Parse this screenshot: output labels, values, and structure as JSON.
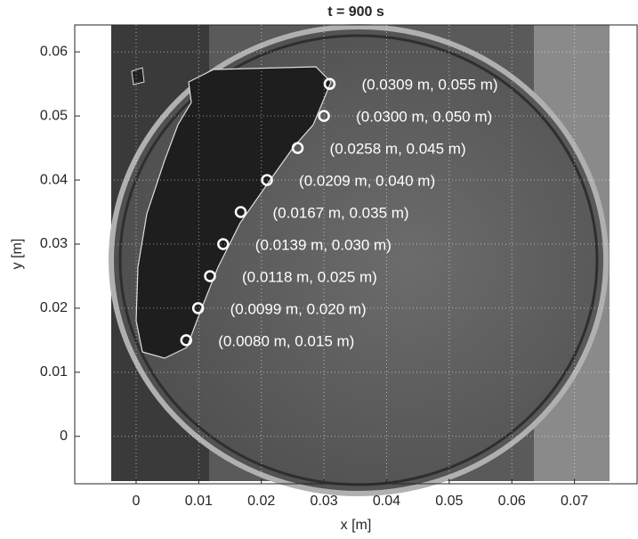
{
  "chart_data": {
    "type": "scatter",
    "title": "t = 900 s",
    "x_label": "x [m]",
    "y_label": "y [m]",
    "x": [
      0.0309,
      0.03,
      0.0258,
      0.0209,
      0.0167,
      0.0139,
      0.0118,
      0.0099,
      0.008
    ],
    "values": [
      0.055,
      0.05,
      0.045,
      0.04,
      0.035,
      0.03,
      0.025,
      0.02,
      0.015
    ],
    "value_labels": [
      "(0.0309 m, 0.055 m)",
      "(0.0300 m, 0.050 m)",
      "(0.0258 m, 0.045 m)",
      "(0.0209 m, 0.040 m)",
      "(0.0167 m, 0.035 m)",
      "(0.0139 m, 0.030 m)",
      "(0.0118 m, 0.025 m)",
      "(0.0099 m, 0.020 m)",
      "(0.0080 m, 0.015 m)"
    ],
    "color": "#ffffff",
    "xlim": [
      -0.0098,
      0.08
    ],
    "ylim": [
      -0.0074,
      0.0642
    ],
    "xticks": [
      0,
      0.01,
      0.02,
      0.03,
      0.04,
      0.05,
      0.06,
      0.07
    ],
    "yticks": [
      0,
      0.01,
      0.02,
      0.03,
      0.04,
      0.05,
      0.06
    ],
    "grid": true
  }
}
